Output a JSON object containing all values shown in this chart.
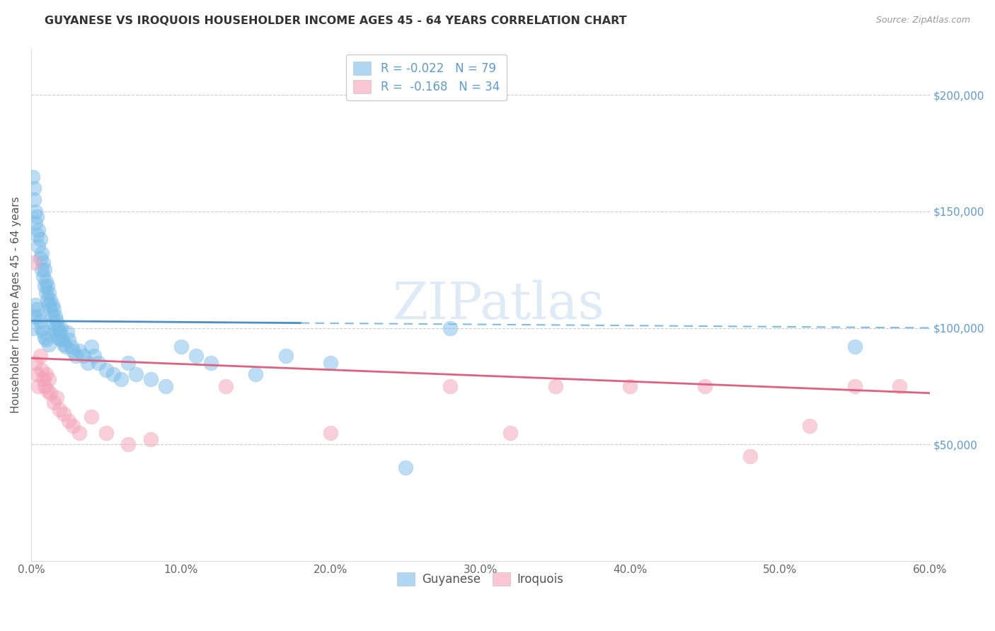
{
  "title": "GUYANESE VS IROQUOIS HOUSEHOLDER INCOME AGES 45 - 64 YEARS CORRELATION CHART",
  "source": "Source: ZipAtlas.com",
  "ylabel": "Householder Income Ages 45 - 64 years",
  "xlim": [
    0.0,
    0.6
  ],
  "ylim": [
    0,
    220000
  ],
  "guyanese_R": -0.022,
  "guyanese_N": 79,
  "iroquois_R": -0.168,
  "iroquois_N": 34,
  "blue_scatter_color": "#7bbde8",
  "pink_scatter_color": "#f4a0b8",
  "blue_line_color": "#4a90c4",
  "pink_line_color": "#e06080",
  "blue_line_dash_color": "#7bbde8",
  "ytick_values": [
    50000,
    100000,
    150000,
    200000
  ],
  "ytick_color": "#5b9bd5",
  "title_color": "#333333",
  "source_color": "#999999",
  "watermark": "ZIPatlas",
  "guyanese_x": [
    0.001,
    0.001,
    0.002,
    0.002,
    0.002,
    0.003,
    0.003,
    0.003,
    0.004,
    0.004,
    0.004,
    0.005,
    0.005,
    0.005,
    0.006,
    0.006,
    0.006,
    0.007,
    0.007,
    0.007,
    0.008,
    0.008,
    0.008,
    0.009,
    0.009,
    0.009,
    0.01,
    0.01,
    0.01,
    0.011,
    0.011,
    0.012,
    0.012,
    0.012,
    0.013,
    0.013,
    0.014,
    0.014,
    0.015,
    0.015,
    0.016,
    0.016,
    0.017,
    0.017,
    0.018,
    0.018,
    0.019,
    0.02,
    0.02,
    0.021,
    0.022,
    0.023,
    0.024,
    0.025,
    0.027,
    0.028,
    0.03,
    0.032,
    0.035,
    0.038,
    0.04,
    0.042,
    0.045,
    0.05,
    0.055,
    0.06,
    0.065,
    0.07,
    0.08,
    0.09,
    0.1,
    0.11,
    0.12,
    0.15,
    0.17,
    0.2,
    0.25,
    0.28,
    0.55
  ],
  "guyanese_y": [
    165000,
    100000,
    160000,
    105000,
    155000,
    150000,
    110000,
    145000,
    148000,
    140000,
    108000,
    142000,
    135000,
    105000,
    138000,
    130000,
    103000,
    132000,
    125000,
    100000,
    128000,
    122000,
    98000,
    125000,
    118000,
    96000,
    120000,
    115000,
    95000,
    118000,
    112000,
    115000,
    110000,
    93000,
    112000,
    108000,
    110000,
    105000,
    108000,
    102000,
    105000,
    100000,
    103000,
    98000,
    100000,
    96000,
    98000,
    95000,
    100000,
    95000,
    93000,
    92000,
    98000,
    95000,
    92000,
    90000,
    88000,
    90000,
    88000,
    85000,
    92000,
    88000,
    85000,
    82000,
    80000,
    78000,
    85000,
    80000,
    78000,
    75000,
    92000,
    88000,
    85000,
    80000,
    88000,
    85000,
    40000,
    100000,
    92000
  ],
  "iroquois_x": [
    0.002,
    0.003,
    0.004,
    0.005,
    0.006,
    0.007,
    0.008,
    0.009,
    0.01,
    0.011,
    0.012,
    0.013,
    0.015,
    0.017,
    0.019,
    0.022,
    0.025,
    0.028,
    0.032,
    0.04,
    0.05,
    0.065,
    0.08,
    0.13,
    0.2,
    0.28,
    0.32,
    0.35,
    0.4,
    0.45,
    0.48,
    0.52,
    0.55,
    0.58
  ],
  "iroquois_y": [
    128000,
    85000,
    80000,
    75000,
    88000,
    82000,
    78000,
    75000,
    80000,
    73000,
    78000,
    72000,
    68000,
    70000,
    65000,
    63000,
    60000,
    58000,
    55000,
    62000,
    55000,
    50000,
    52000,
    75000,
    55000,
    75000,
    55000,
    75000,
    75000,
    75000,
    45000,
    58000,
    75000,
    75000
  ],
  "legend_r1": "R = -0.022",
  "legend_n1": "N = 79",
  "legend_r2": "R =  -0.168",
  "legend_n2": "N = 34",
  "legend_label1": "Guyanese",
  "legend_label2": "Iroquois"
}
